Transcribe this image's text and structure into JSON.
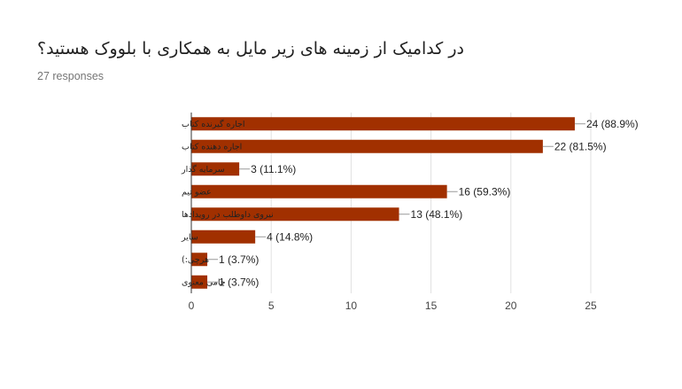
{
  "header": {
    "title": "در کدامیک از زمینه های زیر مایل به همکاری با بلووک هستید؟",
    "responses": "27 responses"
  },
  "chart_data": {
    "type": "bar",
    "orientation": "horizontal",
    "categories": [
      "اجاره گیرنده کتاب",
      "اجاره دهنده کتاب",
      "سرمایه گذار",
      "عضو تیم",
      "نیروی داوطلب در رویدادها",
      "سایر",
      "هرچی:)",
      "حامی معنوی"
    ],
    "values": [
      24,
      22,
      3,
      16,
      13,
      4,
      1,
      1
    ],
    "value_labels": [
      "24 (88.9%)",
      "22 (81.5%)",
      "3 (11.1%)",
      "16 (59.3%)",
      "13 (48.1%)",
      "4 (14.8%)",
      "1 (3.7%)",
      "1 (3.7%)"
    ],
    "xlim": [
      0,
      25
    ],
    "xticks": [
      0,
      5,
      10,
      15,
      20,
      25
    ],
    "bar_color": "#a13000",
    "grid": true
  }
}
